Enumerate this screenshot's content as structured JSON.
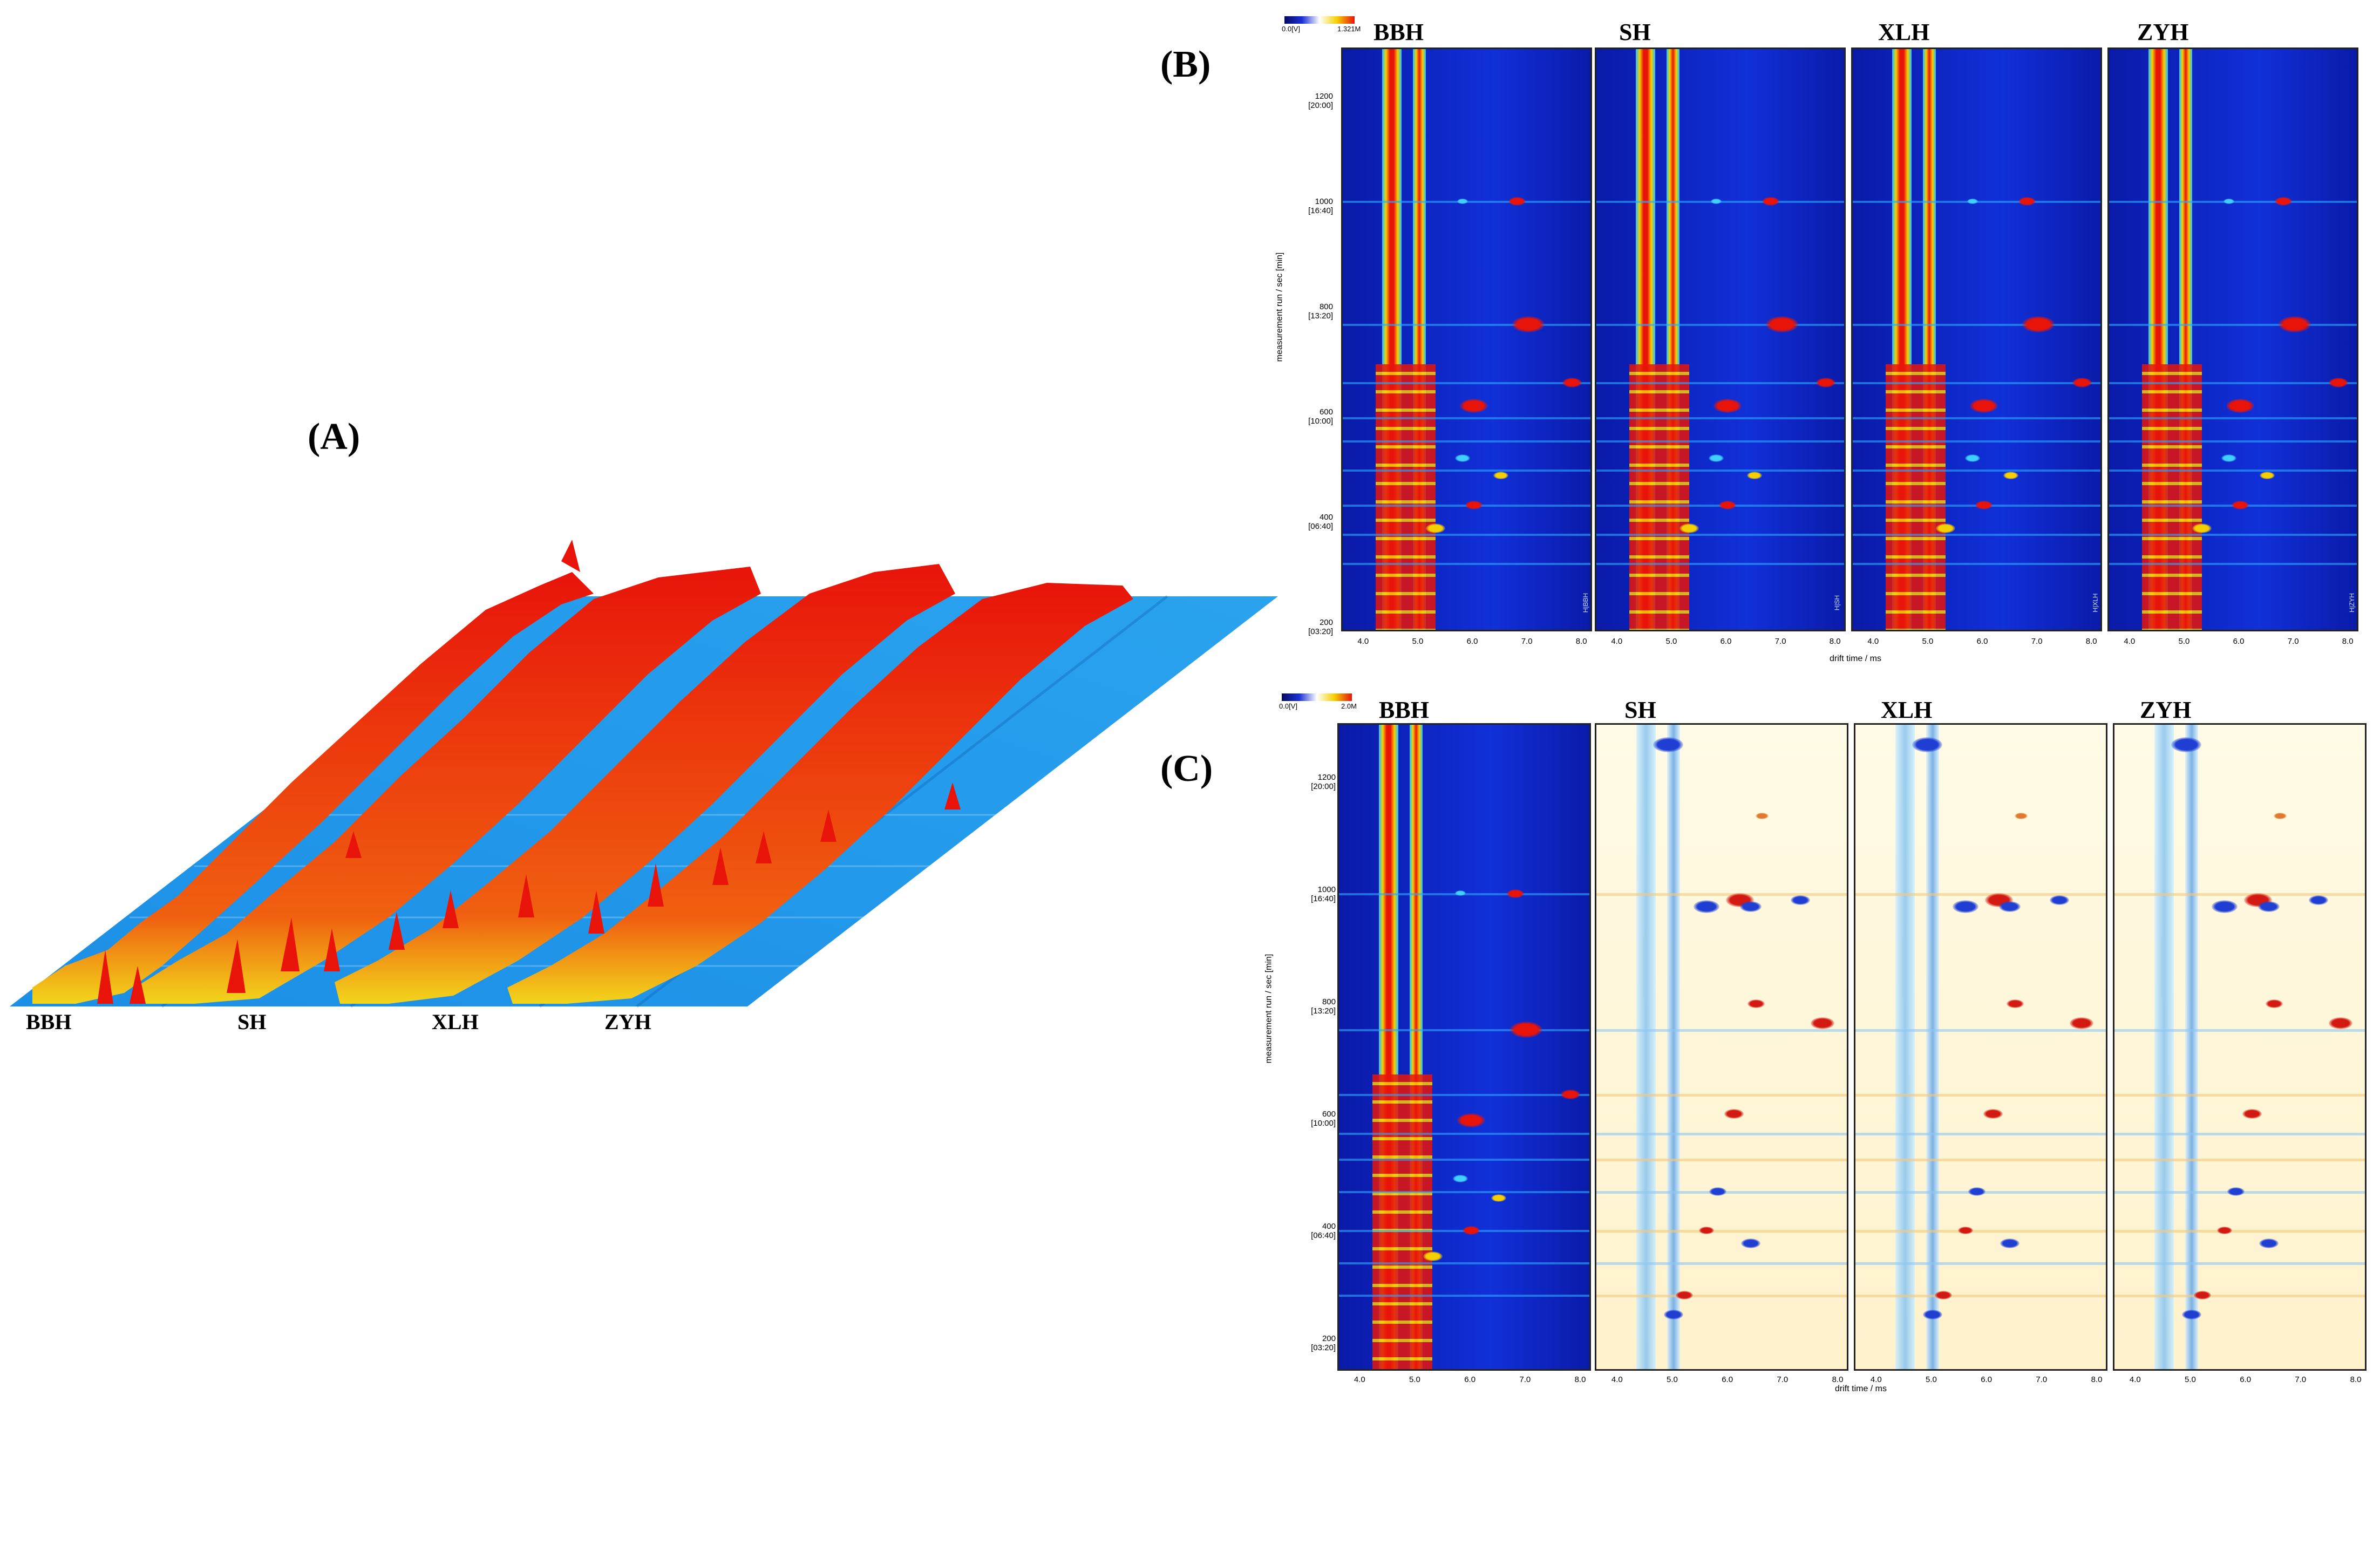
{
  "panels": {
    "A": {
      "label": "(A)",
      "samples": [
        "BBH",
        "SH",
        "XLH",
        "ZYH"
      ]
    },
    "B": {
      "label": "(B)",
      "samples": [
        "BBH",
        "SH",
        "XLH",
        "ZYH"
      ],
      "colorbar": {
        "min": "0.0[V]",
        "max": "1.321M"
      }
    },
    "C": {
      "label": "(C)",
      "samples": [
        "BBH",
        "SH",
        "XLH",
        "ZYH"
      ],
      "colorbar": {
        "min": "0.0[V]",
        "max": "2.0M"
      }
    }
  },
  "chart_data": [
    {
      "type": "heatmap",
      "title": "(A)",
      "description_type": "3D topographic GC-IMS spectra",
      "samples": [
        "BBH",
        "SH",
        "XLH",
        "ZYH"
      ]
    },
    {
      "type": "heatmap",
      "title": "(B)",
      "xlabel": "drift time / ms",
      "ylabel": "measurement run / sec [min]",
      "x_ticks": [
        "4.0",
        "5.0",
        "6.0",
        "7.0",
        "8.0"
      ],
      "y_ticks": [
        {
          "value": "1200",
          "sub": "[20:00]"
        },
        {
          "value": "1000",
          "sub": "[16:40]"
        },
        {
          "value": "800",
          "sub": "[13:20]"
        },
        {
          "value": "600",
          "sub": "[10:00]"
        },
        {
          "value": "400",
          "sub": "[06:40]"
        },
        {
          "value": "200",
          "sub": "[03:20]"
        }
      ],
      "xlim": [
        3.6,
        8.2
      ],
      "ylim": [
        180,
        1300
      ],
      "colorbar": {
        "min": "0.0[V]",
        "max": "1.321M"
      },
      "corner_labels": [
        "H|BBH",
        "H|SH",
        "H|XLH",
        "H|ZYH"
      ],
      "samples": [
        "BBH",
        "SH",
        "XLH",
        "ZYH"
      ]
    },
    {
      "type": "heatmap",
      "title": "(C)",
      "xlabel": "drift time / ms",
      "ylabel": "measurement run / sec [min]",
      "x_ticks": [
        "4.0",
        "5.0",
        "6.0",
        "7.0",
        "8.0"
      ],
      "y_ticks": [
        {
          "value": "1200",
          "sub": "[20:00]"
        },
        {
          "value": "1000",
          "sub": "[16:40]"
        },
        {
          "value": "800",
          "sub": "[13:20]"
        },
        {
          "value": "600",
          "sub": "[10:00]"
        },
        {
          "value": "400",
          "sub": "[06:40]"
        },
        {
          "value": "200",
          "sub": "[03:20]"
        }
      ],
      "xlim": [
        3.6,
        8.2
      ],
      "ylim": [
        180,
        1300
      ],
      "colorbar": {
        "min": "0.0[V]",
        "max": "2.0M"
      },
      "reference": "BBH",
      "samples": [
        "BBH",
        "SH",
        "XLH",
        "ZYH"
      ]
    }
  ],
  "colors": {
    "heat_background": "#0a1fc8",
    "heat_peak": "#e8140a",
    "diff_background": "#fffbe6",
    "diff_up": "#d21a12",
    "diff_down": "#1f3fd2",
    "surface": "#1a8fe0"
  }
}
